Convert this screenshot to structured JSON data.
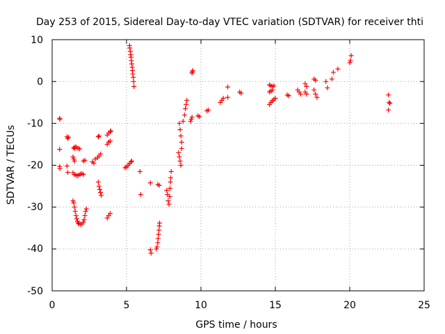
{
  "chart_data": {
    "type": "scatter",
    "title": "Day 253 of 2015, Sidereal Day-to-day VTEC variation (SDTVAR) for receiver thti",
    "xlabel": "GPS time / hours",
    "ylabel": "SDTVAR / TECUs",
    "xlim": [
      0,
      25
    ],
    "ylim": [
      -50,
      10
    ],
    "xticks": [
      "0",
      "5",
      "10",
      "15",
      "20",
      "25"
    ],
    "yticks": [
      "10",
      "0",
      "-10",
      "-20",
      "-30",
      "-40",
      "-50"
    ],
    "grid": true,
    "marker": "plus",
    "color": "#ff0000",
    "series": [
      {
        "name": "SDTVAR",
        "points": [
          [
            0.5,
            -8.8
          ],
          [
            0.52,
            -9.0
          ],
          [
            0.5,
            -16.2
          ],
          [
            0.5,
            -20.3
          ],
          [
            0.52,
            -20.8
          ],
          [
            1.0,
            -13.2
          ],
          [
            1.05,
            -13.6
          ],
          [
            1.1,
            -13.3
          ],
          [
            1.0,
            -20.2
          ],
          [
            1.05,
            -21.7
          ],
          [
            1.4,
            -18.0
          ],
          [
            1.45,
            -18.5
          ],
          [
            1.5,
            -19.0
          ],
          [
            1.4,
            -21.8
          ],
          [
            1.5,
            -22.2
          ],
          [
            1.6,
            -22.4
          ],
          [
            1.7,
            -22.5
          ],
          [
            1.8,
            -22.3
          ],
          [
            1.9,
            -22.1
          ],
          [
            1.45,
            -15.8
          ],
          [
            1.55,
            -15.6
          ],
          [
            1.65,
            -15.7
          ],
          [
            1.75,
            -16.0
          ],
          [
            1.85,
            -16.1
          ],
          [
            1.5,
            -16.0
          ],
          [
            1.4,
            -28.5
          ],
          [
            1.45,
            -29.0
          ],
          [
            1.5,
            -30.0
          ],
          [
            1.55,
            -31.0
          ],
          [
            1.6,
            -32.0
          ],
          [
            1.65,
            -32.8
          ],
          [
            1.7,
            -33.4
          ],
          [
            1.75,
            -33.8
          ],
          [
            1.8,
            -34.0
          ],
          [
            1.9,
            -34.1
          ],
          [
            2.0,
            -34.0
          ],
          [
            2.1,
            -33.6
          ],
          [
            2.15,
            -33.0
          ],
          [
            2.2,
            -32.0
          ],
          [
            2.25,
            -31.0
          ],
          [
            2.3,
            -30.4
          ],
          [
            2.1,
            -19.0
          ],
          [
            2.2,
            -18.8
          ],
          [
            2.0,
            -22.0
          ],
          [
            2.1,
            -22.2
          ],
          [
            2.7,
            -19.2
          ],
          [
            2.8,
            -19.5
          ],
          [
            2.9,
            -18.5
          ],
          [
            3.1,
            -13.2
          ],
          [
            3.15,
            -13.0
          ],
          [
            3.05,
            -18.2
          ],
          [
            3.15,
            -17.8
          ],
          [
            3.25,
            -17.3
          ],
          [
            3.1,
            -24.0
          ],
          [
            3.15,
            -25.0
          ],
          [
            3.2,
            -25.8
          ],
          [
            3.25,
            -26.5
          ],
          [
            3.3,
            -27.2
          ],
          [
            3.7,
            -12.8
          ],
          [
            3.8,
            -12.3
          ],
          [
            3.9,
            -12.0
          ],
          [
            3.95,
            -11.8
          ],
          [
            3.7,
            -15.0
          ],
          [
            3.8,
            -14.5
          ],
          [
            3.9,
            -14.2
          ],
          [
            3.7,
            -32.6
          ],
          [
            3.8,
            -32.0
          ],
          [
            3.9,
            -31.5
          ],
          [
            4.9,
            -20.6
          ],
          [
            5.0,
            -20.4
          ],
          [
            5.1,
            -20.0
          ],
          [
            5.2,
            -19.6
          ],
          [
            5.3,
            -19.2
          ],
          [
            5.35,
            -19.0
          ],
          [
            5.2,
            8.6
          ],
          [
            5.22,
            8.0
          ],
          [
            5.25,
            7.2
          ],
          [
            5.28,
            6.4
          ],
          [
            5.3,
            5.8
          ],
          [
            5.32,
            5.0
          ],
          [
            5.35,
            4.2
          ],
          [
            5.38,
            3.4
          ],
          [
            5.4,
            2.6
          ],
          [
            5.42,
            1.8
          ],
          [
            5.45,
            1.0
          ],
          [
            5.47,
            0.0
          ],
          [
            5.5,
            -1.2
          ],
          [
            5.9,
            -21.5
          ],
          [
            5.95,
            -27.0
          ],
          [
            6.6,
            -24.2
          ],
          [
            6.6,
            -40.2
          ],
          [
            6.65,
            -41.0
          ],
          [
            7.0,
            -40.0
          ],
          [
            7.05,
            -39.5
          ],
          [
            7.1,
            -38.5
          ],
          [
            7.12,
            -37.5
          ],
          [
            7.15,
            -36.5
          ],
          [
            7.18,
            -35.5
          ],
          [
            7.2,
            -34.5
          ],
          [
            7.22,
            -33.8
          ],
          [
            7.1,
            -24.6
          ],
          [
            7.2,
            -24.8
          ],
          [
            7.7,
            -26.0
          ],
          [
            7.75,
            -27.0
          ],
          [
            7.8,
            -28.5
          ],
          [
            7.85,
            -29.3
          ],
          [
            7.9,
            -27.5
          ],
          [
            7.92,
            -25.5
          ],
          [
            7.95,
            -24.0
          ],
          [
            7.97,
            -23.0
          ],
          [
            8.0,
            -21.5
          ],
          [
            8.5,
            -17.0
          ],
          [
            8.55,
            -18.0
          ],
          [
            8.6,
            -19.0
          ],
          [
            8.65,
            -20.0
          ],
          [
            8.55,
            -10.0
          ],
          [
            8.6,
            -11.5
          ],
          [
            8.65,
            -13.0
          ],
          [
            8.7,
            -14.5
          ],
          [
            8.7,
            -16.0
          ],
          [
            8.8,
            -9.5
          ],
          [
            8.9,
            -8.0
          ],
          [
            8.95,
            -6.5
          ],
          [
            9.0,
            -5.5
          ],
          [
            9.05,
            -4.5
          ],
          [
            9.3,
            -9.5
          ],
          [
            9.35,
            -9.0
          ],
          [
            9.4,
            -8.5
          ],
          [
            9.4,
            2.0
          ],
          [
            9.42,
            2.3
          ],
          [
            9.45,
            2.6
          ],
          [
            9.8,
            -8.2
          ],
          [
            9.9,
            -8.4
          ],
          [
            10.4,
            -7.0
          ],
          [
            10.5,
            -6.8
          ],
          [
            11.3,
            -5.0
          ],
          [
            11.4,
            -4.5
          ],
          [
            11.5,
            -4.0
          ],
          [
            11.8,
            -3.8
          ],
          [
            11.8,
            -1.3
          ],
          [
            12.6,
            -2.5
          ],
          [
            12.7,
            -2.8
          ],
          [
            14.6,
            -0.8
          ],
          [
            14.7,
            -1.0
          ],
          [
            14.8,
            -1.2
          ],
          [
            14.9,
            -1.0
          ],
          [
            14.6,
            -2.5
          ],
          [
            14.7,
            -2.3
          ],
          [
            14.8,
            -2.0
          ],
          [
            14.6,
            -5.5
          ],
          [
            14.7,
            -5.0
          ],
          [
            14.8,
            -4.6
          ],
          [
            14.9,
            -4.3
          ],
          [
            15.0,
            -4.0
          ],
          [
            15.8,
            -3.2
          ],
          [
            15.9,
            -3.4
          ],
          [
            16.5,
            -2.0
          ],
          [
            16.6,
            -2.5
          ],
          [
            16.7,
            -3.0
          ],
          [
            17.0,
            -0.5
          ],
          [
            17.1,
            -1.2
          ],
          [
            17.0,
            -2.5
          ],
          [
            17.1,
            -3.0
          ],
          [
            17.6,
            -2.0
          ],
          [
            17.7,
            -3.0
          ],
          [
            17.8,
            -3.8
          ],
          [
            17.6,
            0.6
          ],
          [
            17.7,
            0.3
          ],
          [
            18.4,
            0.0
          ],
          [
            18.5,
            -1.5
          ],
          [
            18.8,
            0.6
          ],
          [
            18.9,
            2.2
          ],
          [
            19.2,
            3.0
          ],
          [
            20.0,
            4.5
          ],
          [
            20.05,
            5.0
          ],
          [
            20.1,
            6.2
          ],
          [
            22.6,
            -3.2
          ],
          [
            22.65,
            -5.0
          ],
          [
            22.7,
            -5.2
          ],
          [
            22.6,
            -6.8
          ]
        ]
      }
    ]
  }
}
